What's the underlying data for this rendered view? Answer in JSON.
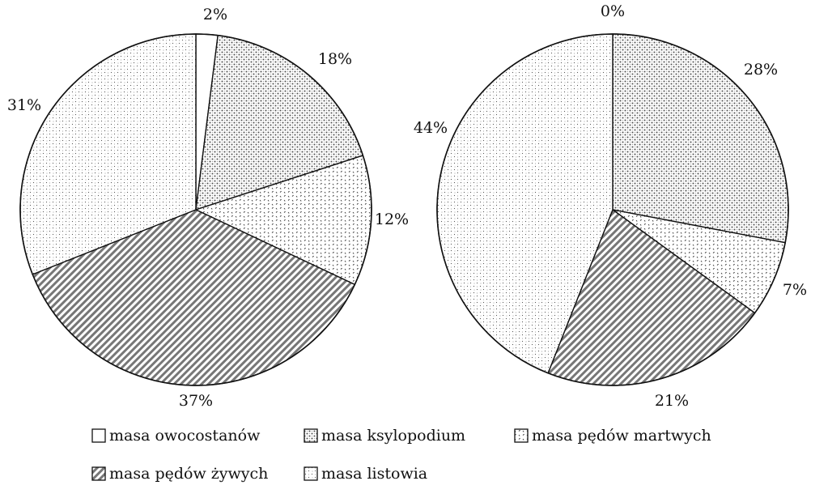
{
  "chart_data": [
    {
      "type": "pie",
      "slices": [
        {
          "key": "owoc",
          "value": 2,
          "label": "2%"
        },
        {
          "key": "ksyl",
          "value": 18,
          "label": "18%"
        },
        {
          "key": "mart",
          "value": 12,
          "label": "12%"
        },
        {
          "key": "zyw",
          "value": 37,
          "label": "37%"
        },
        {
          "key": "list",
          "value": 31,
          "label": "31%"
        }
      ]
    },
    {
      "type": "pie",
      "slices": [
        {
          "key": "owoc",
          "value": 0,
          "label": "0%"
        },
        {
          "key": "ksyl",
          "value": 28,
          "label": "28%"
        },
        {
          "key": "mart",
          "value": 7,
          "label": "7%"
        },
        {
          "key": "zyw",
          "value": 21,
          "label": "21%"
        },
        {
          "key": "list",
          "value": 44,
          "label": "44%"
        }
      ]
    }
  ],
  "legend": [
    {
      "key": "owoc",
      "label": "masa owocostanów"
    },
    {
      "key": "ksyl",
      "label": "masa ksylopodium"
    },
    {
      "key": "mart",
      "label": "masa pędów martwych"
    },
    {
      "key": "zyw",
      "label": "masa pędów żywych"
    },
    {
      "key": "list",
      "label": "masa listowia"
    }
  ],
  "colors": {
    "stroke": "#111111",
    "background": "#ffffff"
  }
}
